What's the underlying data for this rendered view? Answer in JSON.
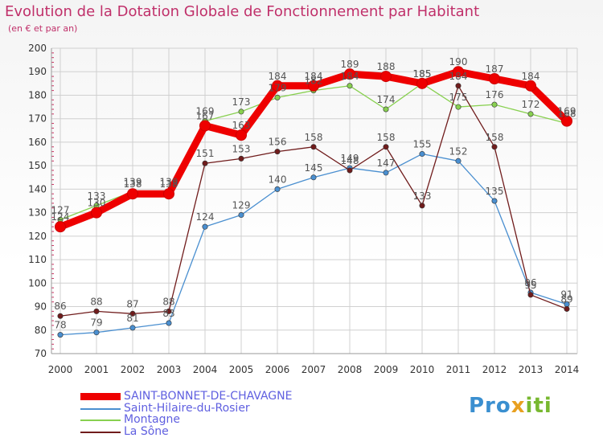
{
  "title": "Evolution de la Dotation Globale de Fonctionnement par Habitant",
  "subtitle": "(en € et par an)",
  "logo": {
    "part1": "Pro",
    "part2": "x",
    "part3": "iti"
  },
  "colors": {
    "title": "#c0306a",
    "grid": "#d0d0d0",
    "axis": "#999999",
    "tick_text": "#333333",
    "value_text": "#555555"
  },
  "chart_data": {
    "type": "line",
    "title": "Evolution de la Dotation Globale de Fonctionnement par Habitant",
    "subtitle": "(en € et par an)",
    "xlabel": "",
    "ylabel": "",
    "ylim": [
      70,
      200
    ],
    "yticks": [
      70,
      80,
      90,
      100,
      110,
      120,
      130,
      140,
      150,
      160,
      170,
      180,
      190,
      200
    ],
    "grid": true,
    "legend_position": "bottom-left",
    "categories": [
      "2000",
      "2001",
      "2002",
      "2003",
      "2004",
      "2005",
      "2006",
      "2007",
      "2008",
      "2009",
      "2010",
      "2011",
      "2012",
      "2013",
      "2014"
    ],
    "series": [
      {
        "name": "Saint-Hilaire-du-Rosier",
        "color": "#4a8fd0",
        "values": [
          78,
          79,
          81,
          83,
          124,
          129,
          140,
          145,
          149,
          147,
          155,
          152,
          135,
          96,
          91
        ],
        "labels": [
          "78",
          "79",
          "81",
          "83",
          "124",
          "129",
          "140",
          "145",
          "149",
          "147",
          "155",
          "152",
          "135",
          "96",
          "91"
        ]
      },
      {
        "name": "Montagne",
        "color": "#88d050",
        "values": [
          127,
          133,
          139,
          139,
          169,
          173,
          179,
          182,
          184,
          174,
          185,
          175,
          176,
          172,
          168
        ],
        "labels": [
          "127",
          "133",
          "139",
          "139",
          "169",
          "173",
          "179",
          "182",
          "184",
          "174",
          "185",
          "175",
          "176",
          "172",
          "168"
        ]
      },
      {
        "name": "La Sône",
        "color": "#701c1c",
        "values": [
          86,
          88,
          87,
          88,
          151,
          153,
          156,
          158,
          148,
          158,
          133,
          184,
          158,
          95,
          89
        ],
        "labels": [
          "86",
          "88",
          "87",
          "88",
          "151",
          "153",
          "156",
          "158",
          "148",
          "158",
          "133",
          "184",
          "158",
          "95",
          "89"
        ]
      },
      {
        "name": "SAINT-BONNET-DE-CHAVAGNE",
        "color": "#ee0000",
        "highlight": true,
        "values": [
          124,
          130,
          138,
          138,
          167,
          163,
          184,
          184,
          189,
          188,
          185,
          190,
          187,
          184,
          169
        ],
        "labels": [
          "124",
          "130",
          "138",
          "138",
          "167",
          "163",
          "184",
          "184",
          "189",
          "188",
          "185",
          "190",
          "187",
          "184",
          "169"
        ]
      }
    ],
    "legend": [
      {
        "name": "SAINT-BONNET-DE-CHAVAGNE",
        "color": "#ee0000",
        "text_color": "#6060e0"
      },
      {
        "name": "Saint-Hilaire-du-Rosier",
        "color": "#4a8fd0",
        "text_color": "#6060e0"
      },
      {
        "name": "Montagne",
        "color": "#88d050",
        "text_color": "#6060e0"
      },
      {
        "name": "La Sône",
        "color": "#701c1c",
        "text_color": "#6060e0"
      }
    ]
  }
}
